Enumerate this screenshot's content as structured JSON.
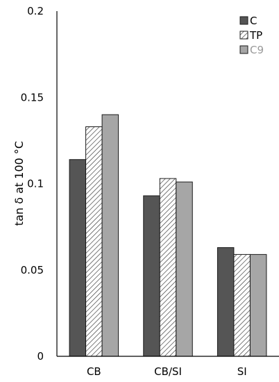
{
  "chart_data": {
    "type": "bar",
    "title": "",
    "xlabel": "",
    "ylabel": "tan δ at 100 °C",
    "categories": [
      "CB",
      "CB/SI",
      "SI"
    ],
    "ylim": [
      0,
      0.2
    ],
    "yticks": [
      "0",
      "0.05",
      "0.1",
      "0.15",
      "0.2"
    ],
    "ytick_values": [
      0,
      0.05,
      0.1,
      0.15,
      0.2
    ],
    "grid": false,
    "legend_position": "top-right",
    "series": [
      {
        "name": "C",
        "values": [
          0.114,
          0.093,
          0.063
        ],
        "color": "#555555",
        "pattern": "solid"
      },
      {
        "name": "TP",
        "values": [
          0.133,
          0.103,
          0.059
        ],
        "color": "#ffffff",
        "pattern": "hatched"
      },
      {
        "name": "C9",
        "values": [
          0.14,
          0.101,
          0.059
        ],
        "color": "#a6a6a6",
        "pattern": "solid"
      }
    ],
    "legend_text_colors": [
      "#000000",
      "#000000",
      "#999999"
    ]
  }
}
